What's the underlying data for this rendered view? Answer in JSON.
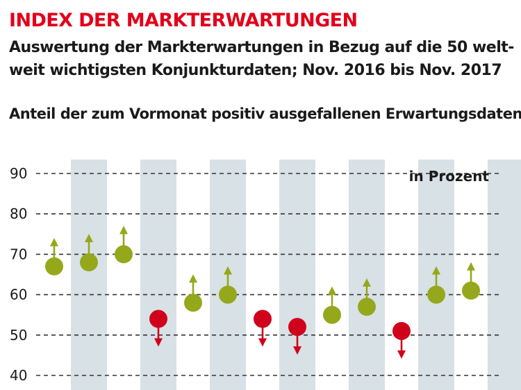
{
  "header": {
    "title": "INDEX DER MARKTERWARTUNGEN",
    "subtitle": "Auswertung der Markterwartungen in Bezug auf die 50 welt-weit wichtigsten Konjunkturdaten; Nov. 2016 bis Nov. 2017",
    "chart_label": "Anteil der zum Vormonat positiv ausgefallenen Erwartungsdaten"
  },
  "colors": {
    "title": "#e2001a",
    "up": "#95a81b",
    "down": "#d0021b",
    "band": "#d8e1e5",
    "grid": "#333333"
  },
  "chart_data": {
    "type": "scatter",
    "title": "Anteil der zum Vormonat positiv ausgefallenen Erwartungsdaten",
    "unit_label": "in Prozent",
    "ylim": [
      40,
      90
    ],
    "yticks": [
      90,
      80,
      70,
      60,
      50,
      40
    ],
    "grid": true,
    "alternating_bands": true,
    "points": [
      {
        "value": 67,
        "direction": "up"
      },
      {
        "value": 68,
        "direction": "up"
      },
      {
        "value": 70,
        "direction": "up"
      },
      {
        "value": 54,
        "direction": "down"
      },
      {
        "value": 58,
        "direction": "up"
      },
      {
        "value": 60,
        "direction": "up"
      },
      {
        "value": 54,
        "direction": "down"
      },
      {
        "value": 52,
        "direction": "down"
      },
      {
        "value": 55,
        "direction": "up"
      },
      {
        "value": 57,
        "direction": "up"
      },
      {
        "value": 51,
        "direction": "down"
      },
      {
        "value": 60,
        "direction": "up"
      },
      {
        "value": 61,
        "direction": "up"
      }
    ]
  }
}
